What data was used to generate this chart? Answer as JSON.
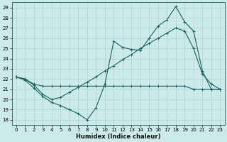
{
  "xlabel": "Humidex (Indice chaleur)",
  "xlim": [
    -0.5,
    23.5
  ],
  "ylim": [
    17.5,
    29.5
  ],
  "xticks": [
    0,
    1,
    2,
    3,
    4,
    5,
    6,
    7,
    8,
    9,
    10,
    11,
    12,
    13,
    14,
    15,
    16,
    17,
    18,
    19,
    20,
    21,
    22,
    23
  ],
  "yticks": [
    18,
    19,
    20,
    21,
    22,
    23,
    24,
    25,
    26,
    27,
    28,
    29
  ],
  "bg_color": "#cceaea",
  "line_color": "#1a6060",
  "grid_color": "#aad4d4",
  "line1_x": [
    0,
    1,
    2,
    3,
    4,
    5,
    6,
    7,
    8,
    9,
    10,
    11,
    12,
    13,
    14,
    15,
    16,
    17,
    18,
    19,
    20,
    21,
    22,
    23
  ],
  "line1_y": [
    22.2,
    21.9,
    21.1,
    20.3,
    19.7,
    19.4,
    19.0,
    18.6,
    18.0,
    19.2,
    21.5,
    25.7,
    25.1,
    24.9,
    24.8,
    26.0,
    27.2,
    27.8,
    29.1,
    27.6,
    26.7,
    22.8,
    21.0,
    21.0
  ],
  "line2_x": [
    0,
    1,
    2,
    3,
    4,
    5,
    6,
    7,
    8,
    9,
    10,
    11,
    12,
    13,
    14,
    15,
    16,
    17,
    18,
    19,
    20,
    21,
    22,
    23
  ],
  "line2_y": [
    22.2,
    22.0,
    21.5,
    21.3,
    21.3,
    21.3,
    21.3,
    21.3,
    21.3,
    21.3,
    21.3,
    21.3,
    21.3,
    21.3,
    21.3,
    21.3,
    21.3,
    21.3,
    21.3,
    21.3,
    21.0,
    21.0,
    21.0,
    21.0
  ],
  "line3_x": [
    0,
    1,
    2,
    3,
    4,
    5,
    6,
    7,
    8,
    9,
    10,
    11,
    12,
    13,
    14,
    15,
    16,
    17,
    18,
    19,
    20,
    21,
    22,
    23
  ],
  "line3_y": [
    22.2,
    22.0,
    21.4,
    20.5,
    20.0,
    20.2,
    20.7,
    21.2,
    21.7,
    22.2,
    22.8,
    23.3,
    23.9,
    24.4,
    25.0,
    25.5,
    26.0,
    26.5,
    27.0,
    26.7,
    25.0,
    22.5,
    21.5,
    21.0
  ]
}
